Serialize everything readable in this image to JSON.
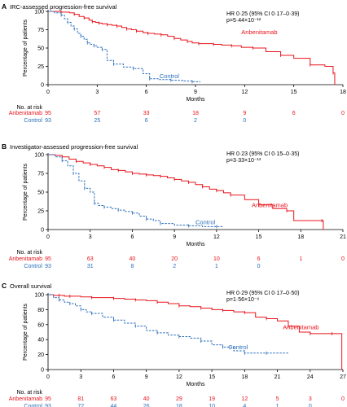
{
  "colors": {
    "anbenitamab": "#e8141c",
    "control": "#2a6ebb",
    "axis": "#000000",
    "text": "#000000"
  },
  "labels": {
    "y_axis": "Percentage of patients",
    "x_axis": "Months",
    "risk_title": "No. at risk",
    "arm_a": "Anbenitamab",
    "arm_b": "Control"
  },
  "chart_data": [
    {
      "type": "line",
      "panel": "A",
      "title": "IRC-assessed progression-free survival",
      "xlabel": "Months",
      "ylabel": "Percentage of patients",
      "xlim": [
        0,
        18
      ],
      "ylim": [
        0,
        100
      ],
      "xticks": [
        0,
        3,
        6,
        9,
        12,
        15,
        18
      ],
      "yticks": [
        0,
        25,
        50,
        75,
        100
      ],
      "hr_text": "HR 0·25 (95% CI 0·17–0·39)",
      "p_text": "p=5·44×10⁻¹²",
      "series": [
        {
          "name": "Anbenitamab",
          "label_at": [
            11.8,
            69
          ],
          "x": [
            0,
            0.3,
            0.8,
            1.3,
            1.6,
            1.9,
            2.2,
            2.5,
            2.7,
            2.9,
            3.1,
            3.3,
            3.6,
            3.9,
            4.2,
            4.5,
            4.8,
            5.1,
            5.4,
            5.8,
            6.1,
            6.5,
            6.9,
            7.3,
            7.7,
            8.1,
            8.5,
            8.8,
            9.2,
            9.6,
            10.1,
            10.6,
            11.2,
            11.8,
            12.5,
            13.3,
            14.2,
            15.0,
            16.0,
            16.9,
            17.4,
            17.5,
            17.5
          ],
          "y": [
            100,
            100,
            99,
            98,
            96,
            93,
            91,
            88,
            86,
            85,
            84,
            83,
            82,
            81,
            80,
            78,
            76,
            75,
            73,
            71,
            70,
            69,
            68,
            66,
            63,
            61,
            59,
            57,
            56,
            56,
            55,
            54,
            53,
            51,
            50,
            45,
            40,
            36,
            27,
            25,
            16,
            10,
            0
          ]
        },
        {
          "name": "Control",
          "label_at": [
            6.8,
            9
          ],
          "dashed": true,
          "x": [
            0,
            0.4,
            0.8,
            1.0,
            1.2,
            1.4,
            1.6,
            1.8,
            2.0,
            2.2,
            2.4,
            2.6,
            2.8,
            3.0,
            3.3,
            3.6,
            4.0,
            4.6,
            5.2,
            5.8,
            6.2,
            6.8,
            7.5,
            8.2,
            8.8,
            9.3
          ],
          "y": [
            100,
            98,
            95,
            90,
            85,
            80,
            76,
            70,
            66,
            62,
            57,
            55,
            53,
            51,
            48,
            33,
            28,
            24,
            22,
            15,
            8,
            7,
            6,
            5,
            4,
            4
          ]
        }
      ],
      "at_risk": {
        "x": [
          0,
          3,
          6,
          9,
          12,
          15,
          18
        ],
        "Anbenitamab": [
          "95",
          "57",
          "33",
          "18",
          "9",
          "6",
          "0"
        ],
        "Control": [
          "93",
          "25",
          "6",
          "2",
          "0",
          "",
          ""
        ]
      }
    },
    {
      "type": "line",
      "panel": "B",
      "title": "Investigator-assessed progression-free survival",
      "xlabel": "Months",
      "ylabel": "Percentage of patients",
      "xlim": [
        0,
        21
      ],
      "ylim": [
        0,
        100
      ],
      "xticks": [
        0,
        3,
        6,
        9,
        12,
        15,
        18,
        21
      ],
      "yticks": [
        0,
        25,
        50,
        75,
        100
      ],
      "hr_text": "HR 0·23 (95% CI 0·15–0·35)",
      "p_text": "p=3·33×10⁻¹³",
      "series": [
        {
          "name": "Anbenitamab",
          "label_at": [
            14.5,
            30
          ],
          "x": [
            0,
            0.5,
            1.0,
            1.5,
            2.0,
            2.5,
            3.0,
            3.5,
            4.0,
            4.5,
            5.0,
            5.5,
            6.0,
            6.5,
            7.0,
            7.5,
            8.0,
            8.5,
            9.0,
            9.5,
            10.0,
            10.5,
            11.0,
            11.5,
            12.0,
            12.5,
            13.0,
            14.0,
            15.0,
            16.0,
            17.0,
            17.5,
            19.5,
            19.6
          ],
          "y": [
            100,
            99,
            97,
            94,
            91,
            89,
            87,
            85,
            83,
            80,
            79,
            77,
            75,
            74,
            73,
            72,
            71,
            69,
            67,
            65,
            63,
            60,
            57,
            54,
            52,
            49,
            46,
            40,
            33,
            28,
            25,
            12,
            12,
            0
          ]
        },
        {
          "name": "Control",
          "label_at": [
            10.5,
            7
          ],
          "dashed": true,
          "x": [
            0,
            0.5,
            1.0,
            1.4,
            1.8,
            2.2,
            2.6,
            3.0,
            3.3,
            3.6,
            4.0,
            4.5,
            5.0,
            5.5,
            6.0,
            6.5,
            7.0,
            7.5,
            8.0,
            9.0,
            10.0,
            11.0,
            12.0,
            12.5
          ],
          "y": [
            100,
            97,
            92,
            85,
            75,
            65,
            55,
            50,
            35,
            32,
            30,
            28,
            26,
            24,
            22,
            18,
            14,
            12,
            8,
            6,
            5,
            4,
            4,
            4
          ]
        }
      ],
      "at_risk": {
        "x": [
          0,
          3,
          6,
          9,
          12,
          15,
          18,
          21
        ],
        "Anbenitamab": [
          "95",
          "63",
          "40",
          "20",
          "10",
          "6",
          "1",
          "0"
        ],
        "Control": [
          "93",
          "31",
          "8",
          "2",
          "1",
          "0",
          "",
          ""
        ]
      }
    },
    {
      "type": "line",
      "panel": "C",
      "title": "Overall survival",
      "xlabel": "Months",
      "ylabel": "Percentage of patients",
      "xlim": [
        0,
        27
      ],
      "ylim": [
        0,
        100
      ],
      "xticks": [
        0,
        3,
        6,
        9,
        12,
        15,
        18,
        21,
        24,
        27
      ],
      "yticks": [
        0,
        20,
        40,
        60,
        80,
        100
      ],
      "hr_text": "HR 0·29 (95% CI 0·17–0·50)",
      "p_text": "p=1·56×10⁻⁶",
      "series": [
        {
          "name": "Anbenitamab",
          "label_at": [
            21.5,
            54
          ],
          "x": [
            0,
            0.5,
            1,
            1.5,
            2,
            3,
            4,
            5,
            6,
            7,
            8,
            9,
            10,
            11,
            12,
            13,
            14,
            15,
            16,
            17,
            18,
            19,
            20,
            21,
            22,
            23,
            24,
            25,
            26,
            26.8,
            26.9
          ],
          "y": [
            100,
            99,
            99,
            98,
            98,
            97,
            96,
            96,
            95,
            94,
            93,
            92,
            90,
            88,
            85,
            84,
            82,
            80,
            79,
            77,
            76,
            70,
            68,
            65,
            58,
            50,
            48,
            48,
            48,
            48,
            0
          ]
        },
        {
          "name": "Control",
          "label_at": [
            16.5,
            27
          ],
          "dashed": true,
          "x": [
            0,
            0.5,
            1,
            1.5,
            2,
            2.5,
            3,
            3.5,
            4,
            5,
            6,
            7,
            8,
            9,
            10,
            11,
            12,
            13,
            14,
            15,
            16,
            17,
            18,
            19,
            20,
            21,
            22
          ],
          "y": [
            100,
            96,
            93,
            90,
            88,
            85,
            80,
            77,
            75,
            70,
            66,
            62,
            58,
            52,
            49,
            46,
            44,
            42,
            38,
            33,
            30,
            25,
            22,
            22,
            22,
            22,
            22
          ]
        }
      ],
      "at_risk": {
        "x": [
          0,
          3,
          6,
          9,
          12,
          15,
          18,
          21,
          24,
          27
        ],
        "Anbenitamab": [
          "95",
          "81",
          "63",
          "40",
          "29",
          "19",
          "12",
          "5",
          "3",
          "0"
        ],
        "Control": [
          "93",
          "72",
          "44",
          "26",
          "18",
          "10",
          "4",
          "1",
          "0",
          ""
        ]
      }
    }
  ]
}
